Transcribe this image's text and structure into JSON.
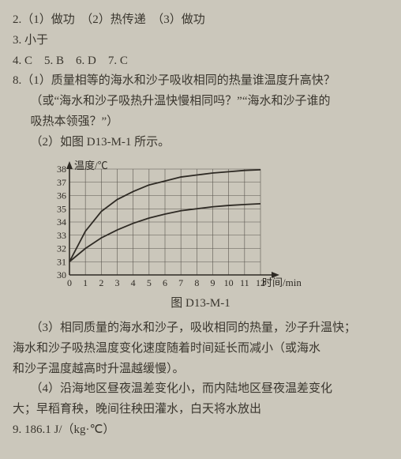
{
  "q2": "2.（1）做功　（2）热传递　（3）做功",
  "q3": "3. 小于",
  "q4": "4. C　5. B　6. D　7. C",
  "q8_1a": "8.（1）质量相等的海水和沙子吸收相同的热量谁温度升高快？",
  "q8_1b": "（或“海水和沙子吸热升温快慢相同吗？”“海水和沙子谁的",
  "q8_1c": "吸热本领强？”）",
  "q8_2": "（2）如图 D13-M-1 所示。",
  "fig_caption": "图 D13-M-1",
  "q8_3a": "（3）相同质量的海水和沙子，吸收相同的热量，沙子升温快；",
  "q8_3b": "海水和沙子吸热温度变化速度随着时间延长而减小（或海水",
  "q8_3c": "和沙子温度越高时升温越缓慢）。",
  "q8_4a": "（4）沿海地区昼夜温差变化小，而内陆地区昼夜温差变化",
  "q8_4b": "大；早稻育秧，晚间往秧田灌水，白天将水放出",
  "q9": "9. 186.1 J/（kg·℃）",
  "chart": {
    "y_label": "温度/℃",
    "x_label": "时间/min",
    "y_min": 30,
    "y_max": 38,
    "y_step": 1,
    "x_min": 0,
    "x_max": 12,
    "x_step": 1,
    "axis_color": "#2e2a24",
    "grid_color": "#5b5750",
    "series_color": "#2e2a24",
    "bg": "#cbc7bb",
    "font_size": 12,
    "series_upper": [
      [
        0,
        31
      ],
      [
        1,
        33.3
      ],
      [
        2,
        34.8
      ],
      [
        3,
        35.7
      ],
      [
        4,
        36.3
      ],
      [
        5,
        36.8
      ],
      [
        6,
        37.1
      ],
      [
        7,
        37.4
      ],
      [
        8,
        37.55
      ],
      [
        9,
        37.7
      ],
      [
        10,
        37.8
      ],
      [
        11,
        37.9
      ],
      [
        12,
        37.95
      ]
    ],
    "series_lower": [
      [
        0,
        31
      ],
      [
        1,
        32.0
      ],
      [
        2,
        32.8
      ],
      [
        3,
        33.4
      ],
      [
        4,
        33.9
      ],
      [
        5,
        34.3
      ],
      [
        6,
        34.6
      ],
      [
        7,
        34.85
      ],
      [
        8,
        35.0
      ],
      [
        9,
        35.15
      ],
      [
        10,
        35.25
      ],
      [
        11,
        35.32
      ],
      [
        12,
        35.38
      ]
    ]
  }
}
